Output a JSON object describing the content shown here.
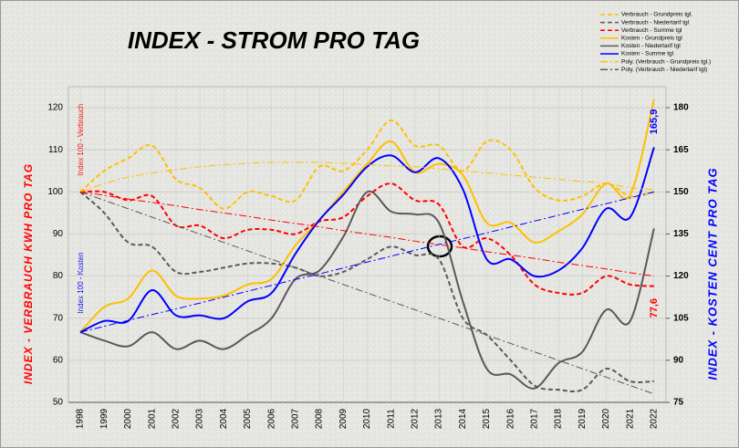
{
  "chart_data": {
    "type": "line",
    "title": "INDEX - STROM PRO TAG",
    "y_label": "INDEX - VERBRAUCH  KWH  PRO TAG",
    "y2_label": "INDEX - KOSTEN  CENT  PRO TAG",
    "annotations": [
      "Index 100 - Verbrauch",
      "Index 100 - Kosten"
    ],
    "categories": [
      "1998",
      "1999",
      "2000",
      "2001",
      "2002",
      "2003",
      "2004",
      "2005",
      "2006",
      "2007",
      "2008",
      "2009",
      "2010",
      "2011",
      "2012",
      "2013",
      "2014",
      "2015",
      "2016",
      "2017",
      "2018",
      "2019",
      "2020",
      "2021",
      "2022"
    ],
    "ylim": [
      50,
      125
    ],
    "yticks": [
      50,
      60,
      70,
      80,
      90,
      100,
      110,
      120
    ],
    "y2lim": [
      75,
      187.5
    ],
    "y2ticks": [
      75,
      90,
      105,
      120,
      135,
      150,
      165,
      180
    ],
    "grid": true,
    "legend": "top-right",
    "series": [
      {
        "name": "Verbrauch - Grundpreis tgl.",
        "color": "#ffc000",
        "style": "dashed",
        "axis": "y",
        "values": [
          100,
          105,
          108,
          111,
          103,
          101,
          96,
          100,
          99,
          98,
          106,
          105,
          110,
          117,
          111,
          111,
          105,
          112,
          110,
          101,
          98,
          99,
          102,
          99,
          100
        ]
      },
      {
        "name": "Verbrauch - Niedertarif tgl",
        "color": "#595959",
        "style": "dashed",
        "axis": "y",
        "values": [
          100,
          95,
          88,
          87,
          81,
          81,
          82,
          83,
          83,
          82,
          80,
          81,
          84,
          87,
          85,
          84,
          70,
          66,
          60,
          54,
          53,
          53,
          58,
          55,
          55
        ]
      },
      {
        "name": "Verbrauch - Summe tgl",
        "color": "#ff0000",
        "style": "dashed",
        "axis": "y",
        "values": [
          100,
          100,
          98,
          99,
          92,
          92,
          89,
          91,
          91,
          90,
          93,
          94,
          99,
          102,
          98,
          97,
          87,
          89,
          85,
          78,
          76,
          76,
          80,
          78,
          77.6
        ],
        "value_labels": [
          null,
          null,
          null,
          null,
          null,
          null,
          null,
          null,
          null,
          null,
          null,
          null,
          null,
          null,
          null,
          null,
          null,
          null,
          null,
          null,
          null,
          null,
          null,
          null,
          "77,6"
        ]
      },
      {
        "name": "Kosten - Grundpreis tgl",
        "color": "#ffc000",
        "style": "solid",
        "axis": "y2",
        "values": [
          100,
          109,
          112,
          122,
          113,
          112,
          113,
          117,
          119,
          131,
          140,
          150,
          160,
          168,
          157,
          160,
          156,
          139,
          139,
          132,
          136,
          142,
          153,
          149,
          183
        ]
      },
      {
        "name": "Kosten - Niedertarif tgl",
        "color": "#595959",
        "style": "solid",
        "axis": "y2",
        "values": [
          100,
          97,
          95,
          100,
          94,
          97,
          94,
          99,
          105,
          119,
          122,
          134,
          150,
          143,
          142,
          139,
          111,
          87,
          85,
          80,
          89,
          93,
          108,
          104,
          137
        ]
      },
      {
        "name": "Kosten - Summe tgl",
        "color": "#0000ff",
        "style": "solid",
        "axis": "y2",
        "values": [
          100,
          104,
          104,
          115,
          106,
          106,
          105,
          111,
          114,
          128,
          140,
          149,
          159,
          163,
          157,
          162,
          151,
          126,
          126,
          120,
          122,
          130,
          144,
          141,
          165.9
        ],
        "value_labels": [
          null,
          null,
          null,
          null,
          null,
          null,
          null,
          null,
          null,
          null,
          null,
          null,
          null,
          null,
          null,
          null,
          null,
          null,
          null,
          null,
          null,
          null,
          null,
          null,
          "165,9"
        ]
      },
      {
        "name": "Poly. (Verbrauch - Grundpreis tgl.)",
        "color": "#ffc000",
        "style": "dashdot",
        "axis": "y",
        "values": [
          100,
          102,
          103.5,
          104.5,
          105.3,
          106,
          106.5,
          106.8,
          107,
          107,
          107,
          106.8,
          106.5,
          106.2,
          106,
          105.5,
          105,
          104.5,
          104,
          103.5,
          103,
          102.5,
          102,
          101,
          100.5
        ]
      },
      {
        "name": "Poly. (Verbrauch - Niedertarif tgl)",
        "color": "#595959",
        "style": "dashdot",
        "axis": "y",
        "values": [
          100,
          98,
          96,
          94,
          92,
          90,
          88,
          86,
          84,
          82,
          80,
          78,
          76,
          74,
          72,
          70,
          68,
          66,
          64,
          62,
          60,
          58,
          56,
          54,
          52
        ]
      },
      {
        "color": "#ff0000",
        "style": "dashdot",
        "axis": "y",
        "values": [
          100,
          99.2,
          98.3,
          97.5,
          96.7,
          95.8,
          95,
          94.2,
          93.3,
          92.5,
          91.7,
          90.8,
          90,
          89.2,
          88.3,
          87.5,
          86.7,
          85.8,
          85,
          84.2,
          83.3,
          82.5,
          81.7,
          80.8,
          80
        ]
      },
      {
        "color": "#0000ff",
        "style": "dashdot",
        "axis": "y2",
        "values": [
          100,
          102.1,
          104.2,
          106.3,
          108.3,
          110.4,
          112.5,
          114.6,
          116.7,
          118.8,
          120.8,
          122.9,
          125,
          127.1,
          129.2,
          131.3,
          133.3,
          135.4,
          137.5,
          139.6,
          141.7,
          143.8,
          145.8,
          147.9,
          150
        ]
      }
    ]
  }
}
